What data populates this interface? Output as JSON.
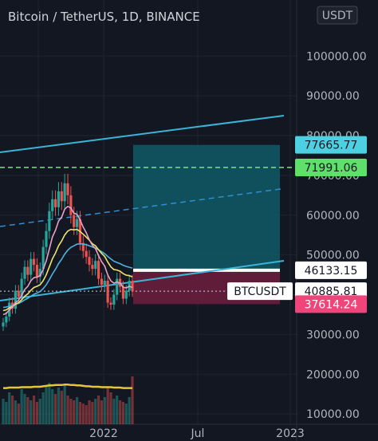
{
  "header": {
    "title": "Bitcoin / TetherUS, 1D, BINANCE",
    "currency_button": "USDT"
  },
  "chart_data": {
    "type": "line",
    "title": "Bitcoin / TetherUS, 1D, BINANCE",
    "xlabel": "",
    "ylabel": "",
    "ylim": [
      0,
      104000
    ],
    "y_ticks": [
      {
        "value": 10000,
        "label": "10000.00"
      },
      {
        "value": 20000,
        "label": "20000.00"
      },
      {
        "value": 30000,
        "label": "30000.00"
      },
      {
        "value": 40000,
        "label": "40000.00"
      },
      {
        "value": 50000,
        "label": "50000.00"
      },
      {
        "value": 60000,
        "label": "60000.00"
      },
      {
        "value": 70000,
        "label": "70000.00"
      },
      {
        "value": 80000,
        "label": "80000.00"
      },
      {
        "value": 90000,
        "label": "90000.00"
      },
      {
        "value": 100000,
        "label": "100000.00"
      }
    ],
    "x_ticks": [
      "2022",
      "Jul",
      "2023"
    ],
    "price_labels": [
      {
        "name": "target",
        "value": 77665.77,
        "label": "77665.77",
        "color": "#4dd0e1"
      },
      {
        "name": "horizontal-line",
        "value": 71991.06,
        "label": "71991.06",
        "color": "#5ee06b"
      },
      {
        "name": "entry",
        "value": 46133.15,
        "label": "46133.15",
        "color": "#ffffff"
      },
      {
        "name": "last-price",
        "value": 40885.81,
        "label": "40885.81",
        "color": "#ffffff",
        "symbol": "BTCUSDT"
      },
      {
        "name": "stop",
        "value": 37614.24,
        "label": "37614.24",
        "color": "#f0457a"
      }
    ],
    "position": {
      "entry": 46133.15,
      "target": 77665.77,
      "stop": 37614.24,
      "profit_color": "#0f5a66",
      "loss_color": "#6e1e3e"
    },
    "close_series": [
      33000,
      34500,
      38000,
      36500,
      41000,
      39500,
      44000,
      47000,
      45000,
      49000,
      47500,
      44500,
      46500,
      52000,
      56000,
      61000,
      64000,
      62000,
      66000,
      63500,
      68000,
      65000,
      60000,
      57000,
      59000,
      53000,
      51000,
      49500,
      47500,
      46500,
      48500,
      44000,
      42500,
      43500,
      38000,
      37500,
      40000,
      44000,
      42000,
      39000,
      41000,
      43500,
      40885.81
    ],
    "ema_short": [
      35000,
      35300,
      36200,
      36900,
      38000,
      38600,
      39800,
      41300,
      42100,
      43500,
      44300,
      44400,
      44800,
      46300,
      48500,
      51500,
      54500,
      56200,
      58500,
      59500,
      61500,
      62200,
      61800,
      60500,
      60200,
      58800,
      57000,
      55600,
      53800,
      52400,
      51600,
      49800,
      48300,
      47200,
      45000,
      43500,
      42900,
      43200,
      42900,
      41900,
      41700,
      42100,
      41800
    ],
    "ema_mid": [
      36000,
      36200,
      36700,
      37000,
      37600,
      38000,
      38700,
      39600,
      40200,
      41100,
      41800,
      42100,
      42500,
      43500,
      45000,
      47000,
      49000,
      50500,
      52300,
      53500,
      55000,
      56000,
      56400,
      56300,
      56400,
      55900,
      55200,
      54500,
      53700,
      52800,
      52300,
      51300,
      50400,
      49600,
      48200,
      47000,
      46300,
      46200,
      45900,
      45300,
      44900,
      44800,
      44500
    ],
    "ema_long": [
      36800,
      36900,
      37100,
      37300,
      37600,
      37800,
      38200,
      38700,
      39100,
      39600,
      40100,
      40400,
      40800,
      41500,
      42500,
      43800,
      45200,
      46400,
      47800,
      48900,
      50200,
      51200,
      51900,
      52300,
      52700,
      52800,
      52700,
      52600,
      52300,
      52000,
      51700,
      51300,
      50800,
      50300,
      49600,
      49000,
      48400,
      48100,
      47800,
      47400,
      47100,
      46900,
      46700
    ],
    "volume_series": [
      32,
      28,
      40,
      36,
      30,
      26,
      44,
      38,
      34,
      30,
      36,
      28,
      32,
      40,
      48,
      52,
      44,
      38,
      46,
      42,
      50,
      36,
      32,
      30,
      34,
      28,
      26,
      24,
      30,
      28,
      32,
      36,
      30,
      34,
      46,
      40,
      32,
      36,
      30,
      28,
      26,
      34,
      60
    ],
    "volume_ma": [
      28,
      28,
      29,
      29,
      29,
      29,
      30,
      30,
      30,
      30,
      31,
      31,
      31,
      32,
      33,
      34,
      34,
      35,
      35,
      35,
      36,
      36,
      35,
      35,
      34,
      34,
      33,
      32,
      32,
      31,
      31,
      31,
      30,
      30,
      30,
      30,
      29,
      29,
      29,
      28,
      28,
      28,
      28
    ],
    "volume_scale_max": 140
  }
}
